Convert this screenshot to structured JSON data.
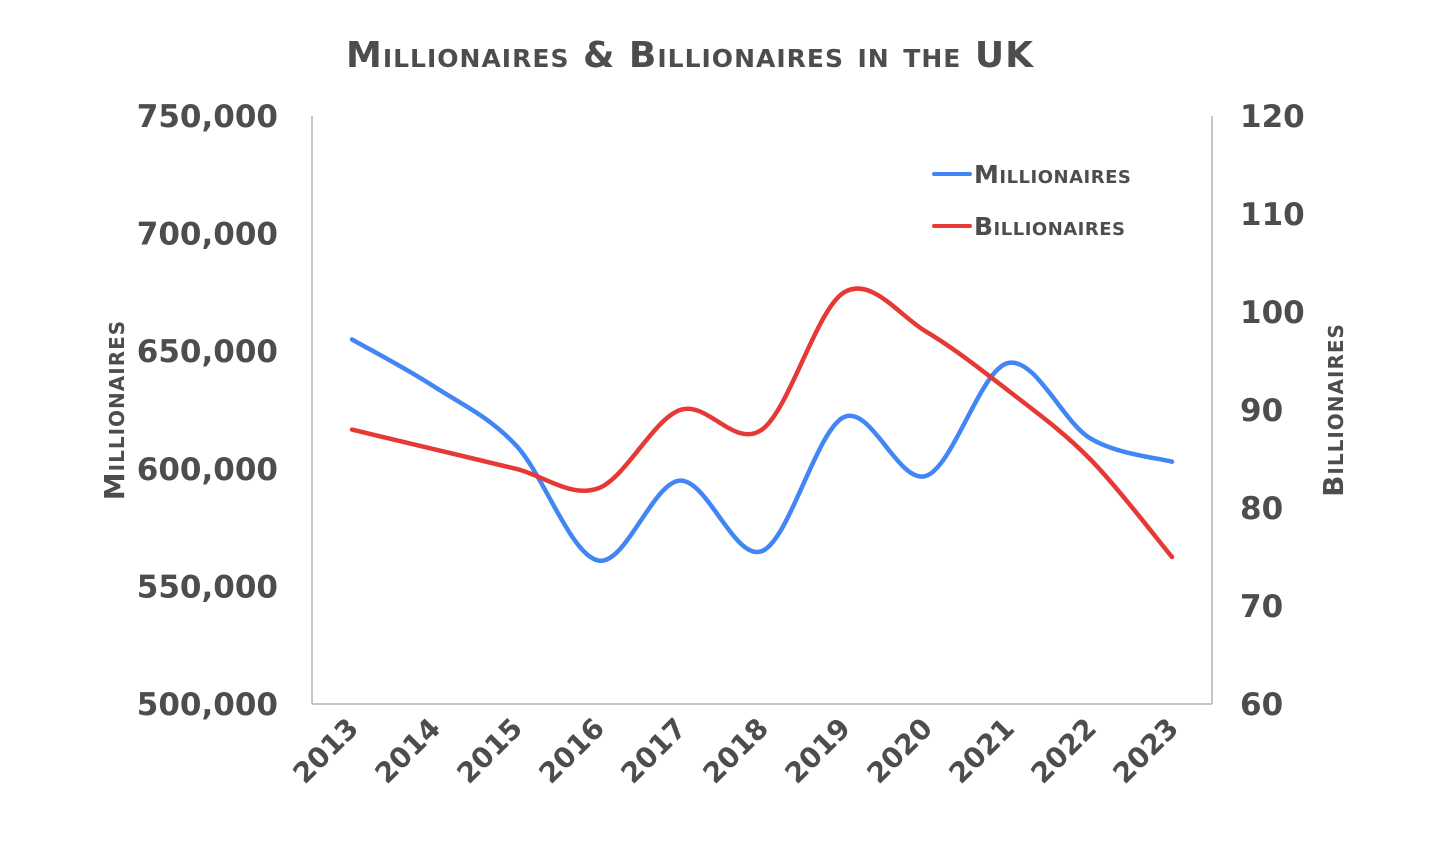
{
  "chart_data": {
    "type": "line",
    "title": "Millionaires & Billionaires in the UK",
    "x": [
      "2013",
      "2014",
      "2015",
      "2016",
      "2017",
      "2018",
      "2019",
      "2020",
      "2021",
      "2022",
      "2023"
    ],
    "series": [
      {
        "name": "Millionaires",
        "axis": "left",
        "color": "#4285f4",
        "values": [
          655000,
          635000,
          610000,
          561000,
          595000,
          565000,
          622000,
          597000,
          645000,
          613000,
          603000
        ]
      },
      {
        "name": "Billionaires",
        "axis": "right",
        "color": "#e53935",
        "values": [
          88,
          86,
          84,
          82,
          90,
          88,
          102,
          98,
          92,
          85,
          75
        ]
      }
    ],
    "ylabel_left": "Millionaires",
    "ylabel_right": "Billionaires",
    "ylim_left": [
      500000,
      750000
    ],
    "ylim_right": [
      60,
      120
    ],
    "yticks_left": [
      "500,000",
      "550,000",
      "600,000",
      "650,000",
      "700,000",
      "750,000"
    ],
    "yticks_right": [
      "60",
      "70",
      "80",
      "90",
      "100",
      "110",
      "120"
    ],
    "legend_position": "top-right",
    "grid": false,
    "smooth": true
  }
}
